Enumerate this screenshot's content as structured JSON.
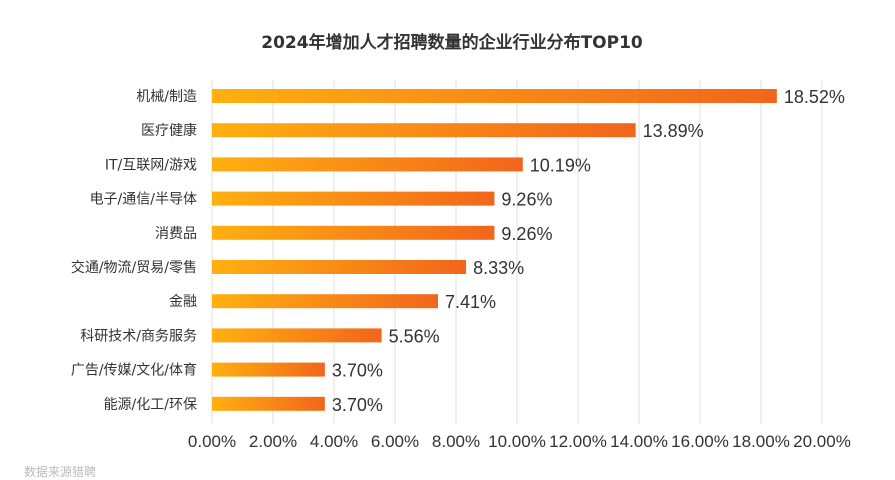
{
  "chart_data": {
    "type": "bar",
    "orientation": "horizontal",
    "title": "2024年增加人才招聘数量的企业行业分布TOP10",
    "categories": [
      "机械/制造",
      "医疗健康",
      "IT/互联网/游戏",
      "电子/通信/半导体",
      "消费品",
      "交通/物流/贸易/零售",
      "金融",
      "科研技术/商务服务",
      "广告/传媒/文化/体育",
      "能源/化工/环保"
    ],
    "values": [
      18.52,
      13.89,
      10.19,
      9.26,
      9.26,
      8.33,
      7.41,
      5.56,
      3.7,
      3.7
    ],
    "value_labels": [
      "18.52%",
      "13.89%",
      "10.19%",
      "9.26%",
      "9.26%",
      "8.33%",
      "7.41%",
      "5.56%",
      "3.70%",
      "3.70%"
    ],
    "xlim": [
      0,
      20
    ],
    "x_ticks": [
      0,
      2,
      4,
      6,
      8,
      10,
      12,
      14,
      16,
      18,
      20
    ],
    "x_tick_labels": [
      "0.00%",
      "2.00%",
      "4.00%",
      "6.00%",
      "8.00%",
      "10.00%",
      "12.00%",
      "14.00%",
      "16.00%",
      "18.00%",
      "20.00%"
    ],
    "grid": true,
    "xlabel": "",
    "ylabel": "",
    "colors": {
      "bar_start": "#FFB010",
      "bar_end": "#F2651C",
      "grid": "#E0E0E0",
      "text": "#333333"
    }
  },
  "footnote": "数据来源猎聘"
}
